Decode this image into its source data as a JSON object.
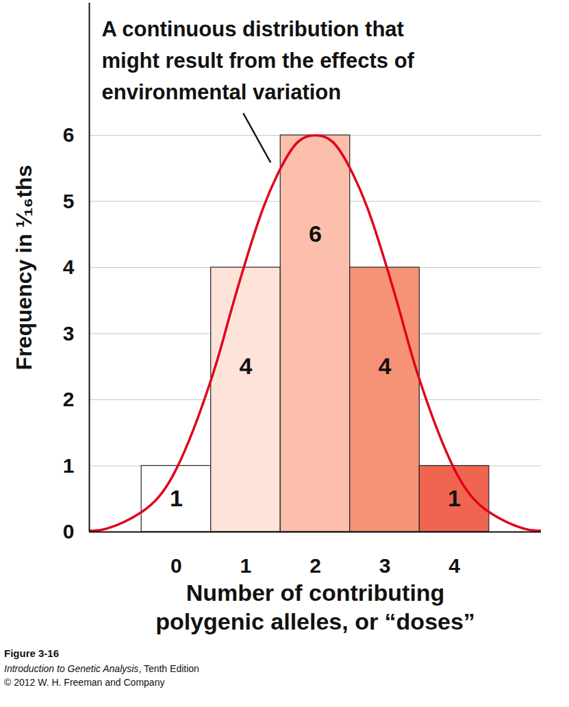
{
  "chart_data": {
    "type": "histogram",
    "annotation": "A continuous distribution that\nmight result from the effects of\nenvironmental variation",
    "x_label": "Number of contributing\npolygenic alleles, or “doses”",
    "y_label": "Frequency in ¹⁄₁₆ths",
    "bins": [
      -0.5,
      0.5,
      1.5,
      2.5,
      3.5,
      4.5
    ],
    "values": [
      1,
      4,
      6,
      4,
      1
    ],
    "colors": [
      "#ffffff",
      "#fde3d8",
      "#fbbfac",
      "#f69377",
      "#f06550"
    ],
    "data_labels": true,
    "curve": {
      "type": "line",
      "color": "#e0001b",
      "x": [
        -1.25,
        -1,
        -0.5,
        0,
        0.5,
        0.75,
        1,
        1.25,
        1.5,
        1.75,
        2,
        2.25,
        2.5,
        2.75,
        3,
        3.25,
        3.5,
        4,
        4.5,
        5,
        5.25
      ],
      "values": [
        0.02,
        0.05,
        0.3,
        0.95,
        2.3,
        3.2,
        4.1,
        4.9,
        5.5,
        5.9,
        6,
        5.9,
        5.5,
        4.9,
        4.1,
        3.2,
        2.3,
        0.95,
        0.3,
        0.05,
        0.02
      ]
    },
    "xlim": [
      -1.25,
      5.25
    ],
    "xticks": [
      0,
      1,
      2,
      3,
      4
    ],
    "ylim": [
      0,
      8
    ],
    "yticks": [
      0,
      1,
      2,
      3,
      4,
      5,
      6
    ],
    "grid": true,
    "caption": {
      "figure": "Figure 3-16",
      "source": [
        "Introduction to Genetic Analysis",
        ", Tenth Edition"
      ],
      "copyright": "© 2012 W. H. Freeman and Company"
    }
  }
}
